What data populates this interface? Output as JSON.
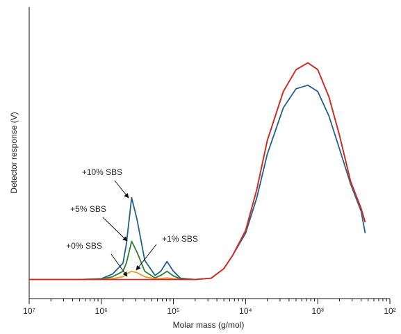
{
  "chart_data": {
    "type": "line",
    "x_label": "Molar mass (g/mol)",
    "y_label": "Detector response (V)",
    "xscale": "log",
    "xlim": [
      10000000,
      100
    ],
    "ylim": [
      -7,
      100
    ],
    "xticks": [
      {
        "value": 10000000,
        "label": "10⁷"
      },
      {
        "value": 1000000,
        "label": "10⁶"
      },
      {
        "value": 100000,
        "label": "10⁵"
      },
      {
        "value": 10000,
        "label": "10⁴"
      },
      {
        "value": 1000,
        "label": "10³"
      },
      {
        "value": 100,
        "label": "10²"
      }
    ],
    "x": [
      10000000,
      2000000,
      1000000,
      700000,
      500000,
      450000,
      380000,
      320000,
      250000,
      180000,
      150000,
      123000,
      100000,
      80000,
      50000,
      30000,
      20000,
      15000,
      10000,
      7000,
      5000,
      3000,
      2000,
      1370,
      1000,
      700,
      500,
      350,
      250,
      220
    ],
    "series": [
      {
        "name": "+10% SBS",
        "color": "#1f5f8b",
        "values": [
          0,
          0,
          0.3,
          2,
          6,
          13,
          30,
          22,
          7,
          1.5,
          3,
          6.6,
          3,
          0.5,
          0,
          0.5,
          4,
          9,
          17,
          30,
          46,
          63,
          70,
          71.3,
          69,
          60,
          48,
          35,
          25,
          17
        ]
      },
      {
        "name": "+5% SBS",
        "color": "#2e7d32",
        "values": [
          0,
          0,
          0.2,
          1,
          3,
          6,
          14,
          10,
          3,
          0.6,
          1.5,
          3,
          1.3,
          0.2,
          0,
          0.5,
          4,
          9,
          18,
          33,
          51,
          69,
          77,
          79.5,
          77,
          67,
          53,
          36,
          26,
          21
        ]
      },
      {
        "name": "+1% SBS",
        "color": "#e0a030",
        "values": [
          0,
          0,
          0,
          0.3,
          1,
          2,
          3,
          2.5,
          1,
          0.3,
          0.4,
          0.6,
          0.3,
          0,
          0,
          0.5,
          4,
          9,
          18,
          33,
          51,
          69,
          77,
          79.5,
          77,
          67,
          53,
          36,
          26,
          21
        ]
      },
      {
        "name": "+0% SBS",
        "color": "#d62728",
        "values": [
          0,
          0,
          0,
          0,
          0,
          0,
          0,
          0,
          0,
          0,
          0,
          0,
          0,
          0,
          0,
          0.5,
          4,
          9,
          18,
          33,
          51,
          69,
          77,
          79.5,
          77,
          67,
          53,
          36,
          26,
          21
        ]
      }
    ]
  }
}
